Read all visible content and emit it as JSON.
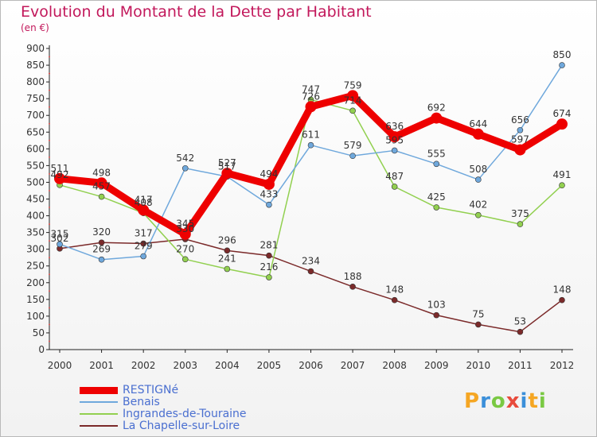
{
  "chart_data": {
    "type": "line",
    "title": "Evolution du Montant de la Dette par Habitant",
    "subtitle": "(en €)",
    "categories": [
      "2000",
      "2001",
      "2002",
      "2003",
      "2004",
      "2005",
      "2006",
      "2007",
      "2008",
      "2009",
      "2010",
      "2011",
      "2012"
    ],
    "ylim": [
      0,
      900
    ],
    "yticks": [
      0,
      50,
      100,
      150,
      200,
      250,
      300,
      350,
      400,
      450,
      500,
      550,
      600,
      650,
      700,
      750,
      800,
      850,
      900
    ],
    "grid": false,
    "legend_position": "bottom-left",
    "series": [
      {
        "name": "RESTIGNé",
        "color": "#ee0000",
        "width": 9,
        "dot": 7,
        "values": [
          511,
          498,
          417,
          345,
          527,
          494,
          726,
          759,
          636,
          692,
          644,
          597,
          674
        ]
      },
      {
        "name": "Benais",
        "color": "#6fa8dc",
        "width": 1.5,
        "dot": 3.5,
        "values": [
          315,
          269,
          279,
          542,
          517,
          433,
          611,
          579,
          595,
          555,
          508,
          656,
          850
        ]
      },
      {
        "name": "Ingrandes-de-Touraine",
        "color": "#92d050",
        "width": 1.5,
        "dot": 3.5,
        "values": [
          492,
          457,
          408,
          270,
          241,
          216,
          747,
          714,
          487,
          425,
          402,
          375,
          491
        ]
      },
      {
        "name": "La Chapelle-sur-Loire",
        "color": "#7b2a2a",
        "width": 1.5,
        "dot": 3.5,
        "values": [
          302,
          320,
          317,
          330,
          296,
          281,
          234,
          188,
          148,
          103,
          75,
          53,
          148
        ]
      }
    ]
  },
  "logo": {
    "letters": [
      "P",
      "r",
      "o",
      "x",
      "i",
      "t",
      "i"
    ],
    "colors": [
      "#f5a623",
      "#3b8fd9",
      "#7ac943",
      "#e84b3c",
      "#3b8fd9",
      "#f5a623",
      "#7ac943"
    ]
  }
}
